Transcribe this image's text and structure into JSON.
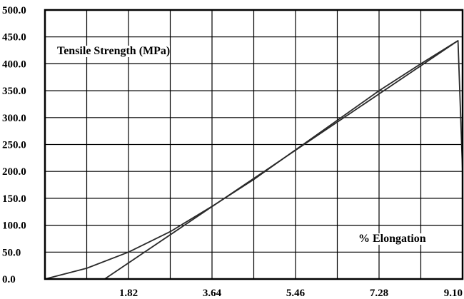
{
  "chart_data": {
    "type": "line",
    "xlabel": "% Elongation",
    "ylabel": "Tensile Strength (MPa)",
    "xlim": [
      0,
      9.1
    ],
    "ylim": [
      0,
      500
    ],
    "grid": true,
    "legend": "none",
    "x_ticks": [
      "1.82",
      "3.64",
      "5.46",
      "7.28",
      "9.10"
    ],
    "y_ticks": [
      "0.0",
      "50.0",
      "100.0",
      "150.0",
      "200.0",
      "250.0",
      "300.0",
      "350.0",
      "400.0",
      "450.0",
      "500.0"
    ],
    "series": [
      {
        "points": [
          {
            "x": 0.0,
            "y": 0
          },
          {
            "x": 0.91,
            "y": 20
          },
          {
            "x": 1.82,
            "y": 50
          },
          {
            "x": 2.73,
            "y": 88
          },
          {
            "x": 3.64,
            "y": 135
          },
          {
            "x": 4.55,
            "y": 185
          },
          {
            "x": 5.46,
            "y": 240
          },
          {
            "x": 6.37,
            "y": 295
          },
          {
            "x": 7.28,
            "y": 350
          },
          {
            "x": 8.19,
            "y": 400
          },
          {
            "x": 9.0,
            "y": 443
          },
          {
            "x": 9.1,
            "y": 200
          }
        ]
      },
      {
        "points": [
          {
            "x": 1.3,
            "y": 0
          },
          {
            "x": 9.0,
            "y": 443
          }
        ]
      }
    ],
    "colors": {
      "line": "#2a2a2a",
      "grid": "#000000",
      "background": "#ffffff"
    }
  }
}
